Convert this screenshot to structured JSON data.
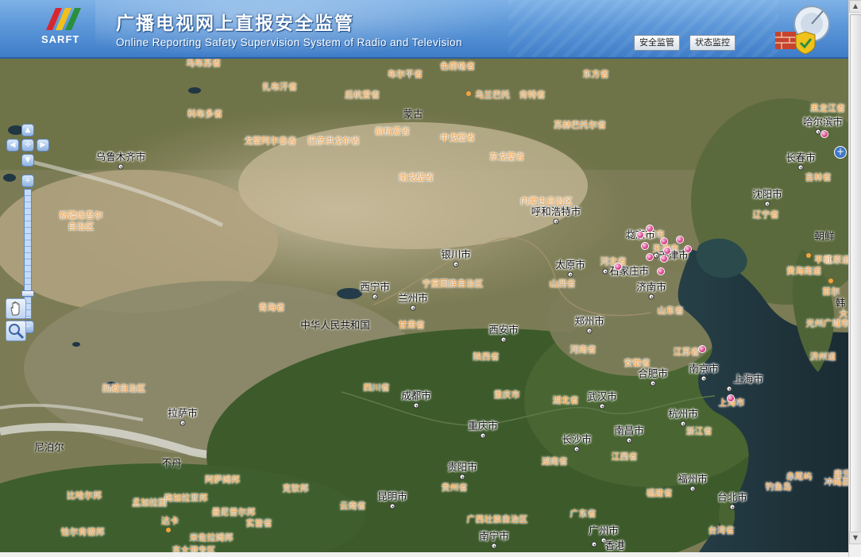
{
  "header": {
    "logo_text": "SARFT",
    "title_cn": "广播电视网上直报安全监管",
    "title_en": "Online Reporting Safety Supervision System of Radio and Television",
    "btn_security": "安全监管",
    "btn_status": "状态监控"
  },
  "map": {
    "country_labels": [
      {
        "text": "蒙古"
      },
      {
        "text": "中华人民共和国"
      },
      {
        "text": "尼泊尔"
      },
      {
        "text": "不丹"
      },
      {
        "text": "朝鲜"
      },
      {
        "text": "韩"
      }
    ],
    "province_labels": [
      {
        "text": "乌布苏省"
      },
      {
        "text": "布尔干省"
      },
      {
        "text": "色楞格省"
      },
      {
        "text": "东方省"
      },
      {
        "text": "扎布汗省"
      },
      {
        "text": "后杭爱省"
      },
      {
        "text": "乌兰巴托"
      },
      {
        "text": "肯特省"
      },
      {
        "text": "科布多省"
      },
      {
        "text": "前杭爱省"
      },
      {
        "text": "戈壁阿尔泰省"
      },
      {
        "text": "巴彦洪戈尔省"
      },
      {
        "text": "中戈壁省"
      },
      {
        "text": "苏赫巴托尔省"
      },
      {
        "text": "东戈壁省"
      },
      {
        "text": "南戈壁省"
      },
      {
        "text": "黑龙江省"
      },
      {
        "text": "吉林省"
      },
      {
        "text": "辽宁省"
      },
      {
        "text": "内蒙古自治区"
      },
      {
        "text": "新疆维吾尔\n自治区"
      },
      {
        "text": "宁夏回族自治区"
      },
      {
        "text": "青海省"
      },
      {
        "text": "甘肃省"
      },
      {
        "text": "山西省"
      },
      {
        "text": "河北省"
      },
      {
        "text": "山东省"
      },
      {
        "text": "陕西省"
      },
      {
        "text": "河南省"
      },
      {
        "text": "江苏省"
      },
      {
        "text": "安徽省"
      },
      {
        "text": "西藏自治区"
      },
      {
        "text": "四川省"
      },
      {
        "text": "重庆市"
      },
      {
        "text": "湖北省"
      },
      {
        "text": "上海市"
      },
      {
        "text": "浙江省"
      },
      {
        "text": "湖南省"
      },
      {
        "text": "江西省"
      },
      {
        "text": "阿萨姆邦"
      },
      {
        "text": "克钦邦"
      },
      {
        "text": "贵州省"
      },
      {
        "text": "比哈尔邦"
      },
      {
        "text": "梅加拉亚邦"
      },
      {
        "text": "曼尼普尔邦"
      },
      {
        "text": "实皆省"
      },
      {
        "text": "云南省"
      },
      {
        "text": "广西壮族自治区"
      },
      {
        "text": "广东省"
      },
      {
        "text": "福建省"
      },
      {
        "text": "台湾省"
      },
      {
        "text": "恰尔肯德邦"
      },
      {
        "text": "达卡"
      },
      {
        "text": "米佐拉姆邦"
      },
      {
        "text": "吉大港专区"
      },
      {
        "text": "平壤"
      },
      {
        "text": "黄海南道"
      },
      {
        "text": "江原道"
      },
      {
        "text": "首尔"
      },
      {
        "text": "光州广域市"
      },
      {
        "text": "济州道"
      },
      {
        "text": "冲绳县"
      },
      {
        "text": "鹿児島"
      },
      {
        "text": "钓鱼岛"
      },
      {
        "text": "赤尾屿"
      },
      {
        "text": "北京市"
      },
      {
        "text": "天津市"
      },
      {
        "text": "孟加拉国"
      },
      {
        "text": "大"
      }
    ],
    "cities": [
      {
        "text": "乌鲁木齐市"
      },
      {
        "text": "呼和浩特市"
      },
      {
        "text": "哈尔滨市"
      },
      {
        "text": "长春市"
      },
      {
        "text": "沈阳市"
      },
      {
        "text": "银川市"
      },
      {
        "text": "西宁市"
      },
      {
        "text": "兰州市"
      },
      {
        "text": "太原市"
      },
      {
        "text": "石家庄市"
      },
      {
        "text": "天津市"
      },
      {
        "text": "济南市"
      },
      {
        "text": "郑州市"
      },
      {
        "text": "西安市"
      },
      {
        "text": "合肥市"
      },
      {
        "text": "南京市"
      },
      {
        "text": "上海市"
      },
      {
        "text": "武汉市"
      },
      {
        "text": "成都市"
      },
      {
        "text": "重庆市"
      },
      {
        "text": "拉萨市"
      },
      {
        "text": "长沙市"
      },
      {
        "text": "南昌市"
      },
      {
        "text": "杭州市"
      },
      {
        "text": "贵阳市"
      },
      {
        "text": "福州市"
      },
      {
        "text": "台北市"
      },
      {
        "text": "昆明市"
      },
      {
        "text": "广州市"
      },
      {
        "text": "南宁市"
      },
      {
        "text": "香港"
      },
      {
        "text": "北京市"
      }
    ],
    "station_marker_count": 14
  }
}
